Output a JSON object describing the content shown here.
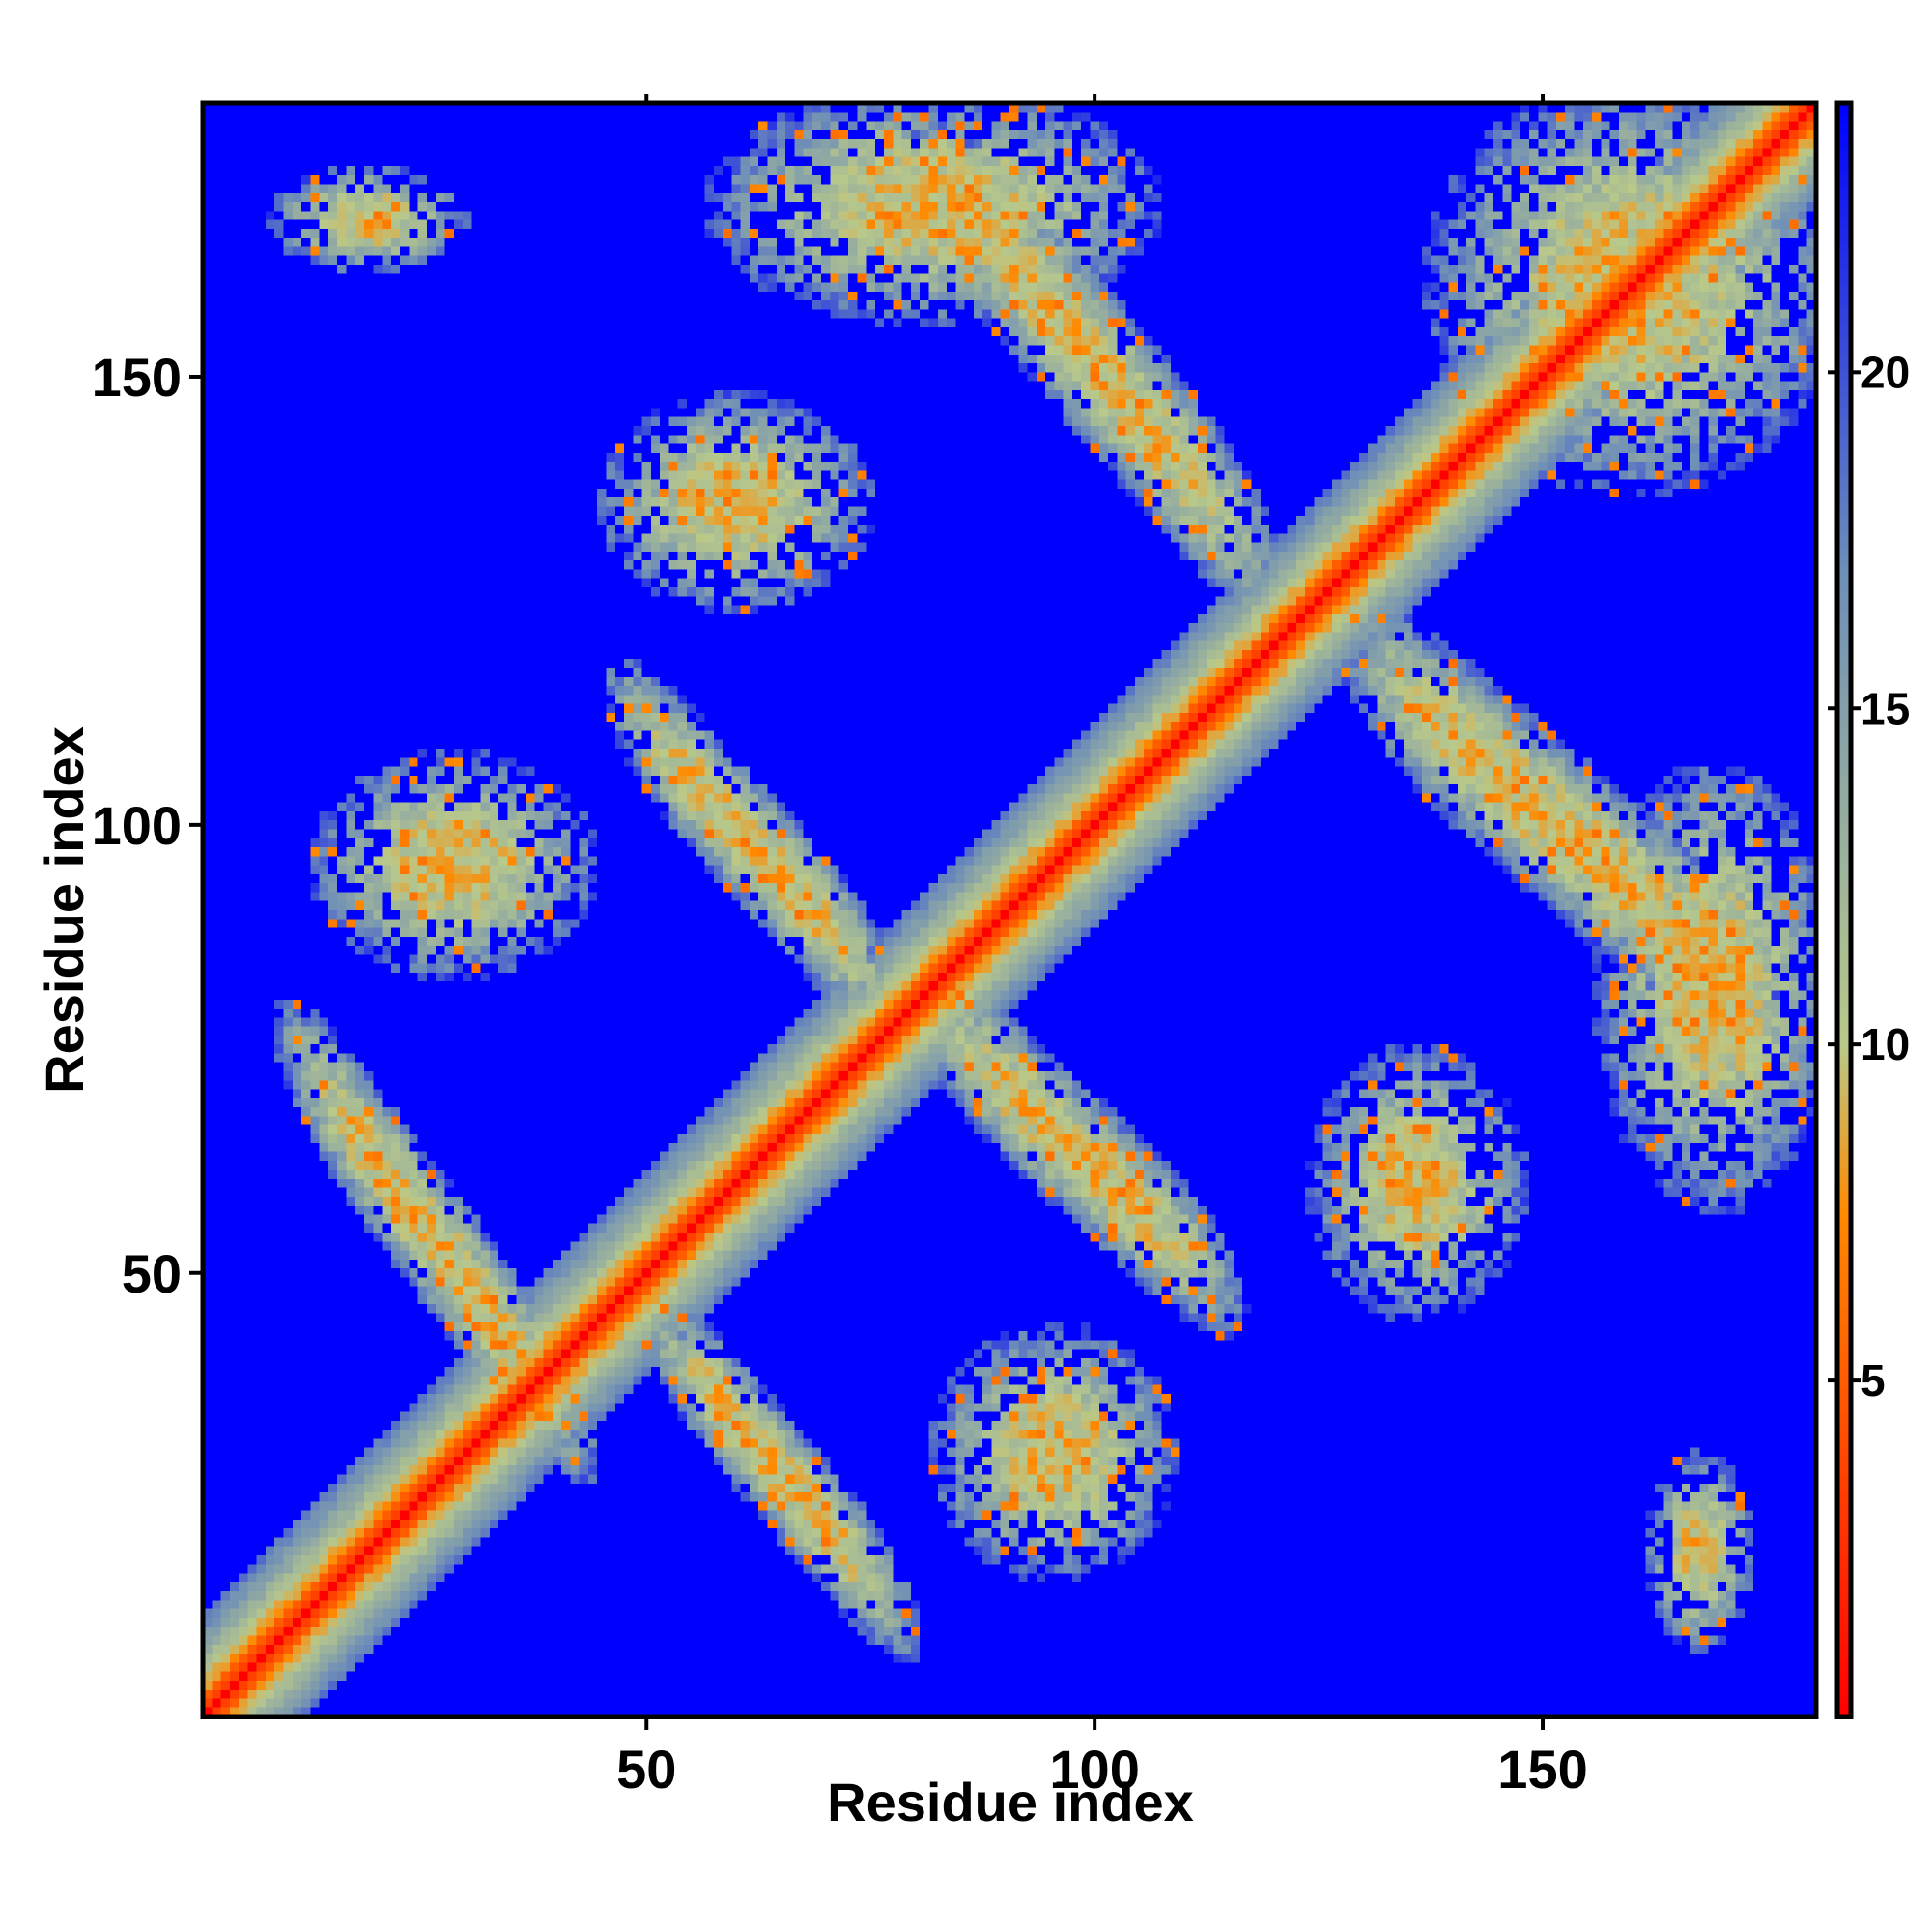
{
  "chart_data": {
    "type": "heatmap",
    "title": "",
    "xlabel": "Residue index",
    "ylabel": "Residue index",
    "n_residues": 180,
    "xlim": [
      1,
      180
    ],
    "ylim": [
      1,
      180
    ],
    "x_ticks": [
      50,
      100,
      150
    ],
    "y_ticks": [
      50,
      100,
      150
    ],
    "x_tick_labels": [
      "50",
      "100",
      "150"
    ],
    "y_tick_labels": [
      "50",
      "100",
      "150"
    ],
    "colorbar": {
      "range": [
        0,
        24
      ],
      "ticks": [
        5,
        10,
        15,
        20
      ],
      "tick_labels": [
        "5",
        "10",
        "15",
        "20"
      ],
      "colors": [
        "#ff0000",
        "#ff8a00",
        "#b9c98a",
        "#6f8fb7",
        "#0000ff"
      ],
      "color_stops": [
        0,
        7.5,
        10,
        17,
        24
      ]
    },
    "value_meaning": "pairwise residue distance (low = red, high/cutoff = blue)",
    "diagonal": {
      "value": 0
    },
    "contact_regions": [
      {
        "kind": "antiparallel",
        "x": [
          9,
          44
        ],
        "y": [
          30,
          77
        ]
      },
      {
        "kind": "antiparallel",
        "x": [
          50,
          80
        ],
        "y": [
          10,
          45
        ]
      },
      {
        "kind": "antiparallel",
        "x": [
          46,
          78
        ],
        "y": [
          80,
          115
        ]
      },
      {
        "kind": "antiparallel",
        "x": [
          80,
          116
        ],
        "y": [
          47,
          80
        ]
      },
      {
        "kind": "antiparallel",
        "x": [
          80,
          120
        ],
        "y": [
          128,
          175
        ]
      },
      {
        "kind": "antiparallel",
        "x": [
          128,
          175
        ],
        "y": [
          80,
          120
        ]
      },
      {
        "kind": "patch",
        "x": [
          47,
          73
        ],
        "y": [
          126,
          146
        ]
      },
      {
        "kind": "patch",
        "x": [
          126,
          146
        ],
        "y": [
          47,
          73
        ]
      },
      {
        "kind": "patch",
        "x": [
          15,
          42
        ],
        "y": [
          85,
          106
        ]
      },
      {
        "kind": "patch",
        "x": [
          84,
          107
        ],
        "y": [
          18,
          42
        ]
      },
      {
        "kind": "patch",
        "x": [
          140,
          180
        ],
        "y": [
          140,
          180
        ]
      },
      {
        "kind": "patch",
        "x": [
          10,
          28
        ],
        "y": [
          163,
          172
        ]
      },
      {
        "kind": "patch",
        "x": [
          163,
          172
        ],
        "y": [
          10,
          28
        ]
      },
      {
        "kind": "patch",
        "x": [
          158,
          180
        ],
        "y": [
          60,
          104
        ]
      },
      {
        "kind": "patch",
        "x": [
          60,
          104
        ],
        "y": [
          158,
          180
        ]
      }
    ]
  }
}
